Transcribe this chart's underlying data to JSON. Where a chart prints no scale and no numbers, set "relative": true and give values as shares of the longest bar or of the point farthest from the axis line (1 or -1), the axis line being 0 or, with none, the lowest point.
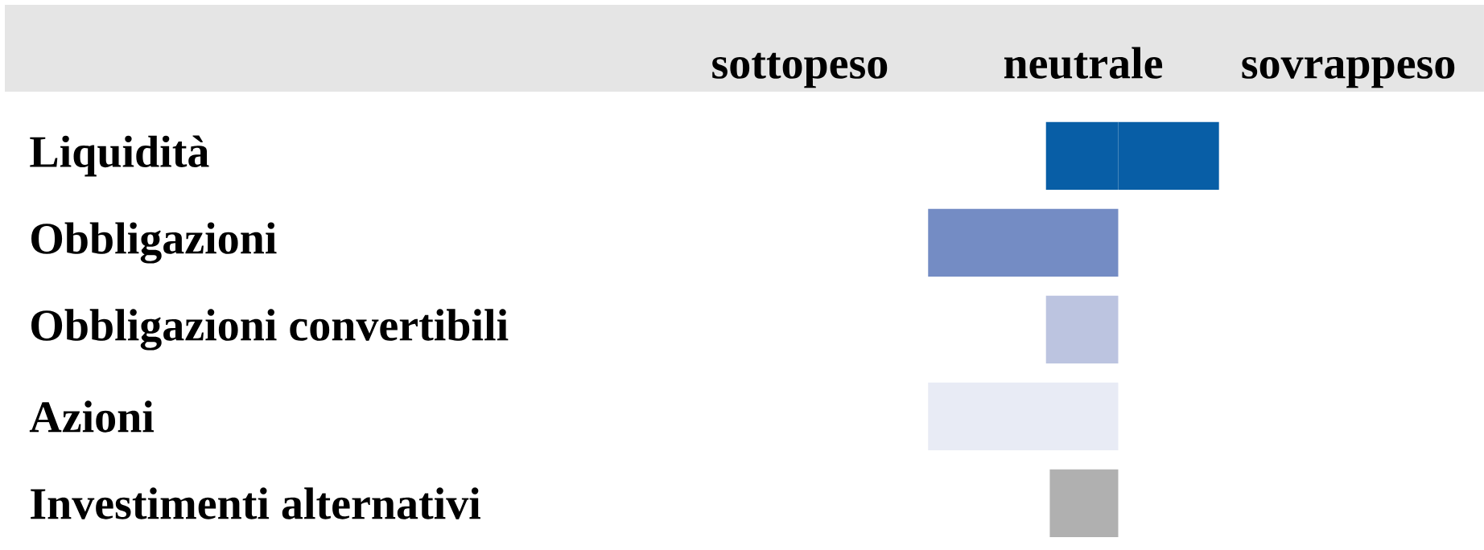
{
  "chart_data": {
    "type": "bar",
    "orientation": "horizontal",
    "relative": true,
    "categories": [
      "Liquidità",
      "Obbligazioni",
      "Obbligazioni convertibili",
      "Azioni",
      "Investimenti alternativi"
    ],
    "series": [
      {
        "colors": [
          "#085ea6",
          "#748cc4",
          "#bcc4e0",
          "#e8ebf5",
          "#b0b0b0"
        ],
        "values": [
          0.38,
          1,
          0.38,
          1,
          0.36
        ]
      },
      {
        "color": "#085ea6",
        "values": [
          -0.53,
          null,
          null,
          null,
          null
        ]
      }
    ],
    "annotations": [
      "sottopeso",
      "neutrale",
      "sovrappeso"
    ]
  }
}
